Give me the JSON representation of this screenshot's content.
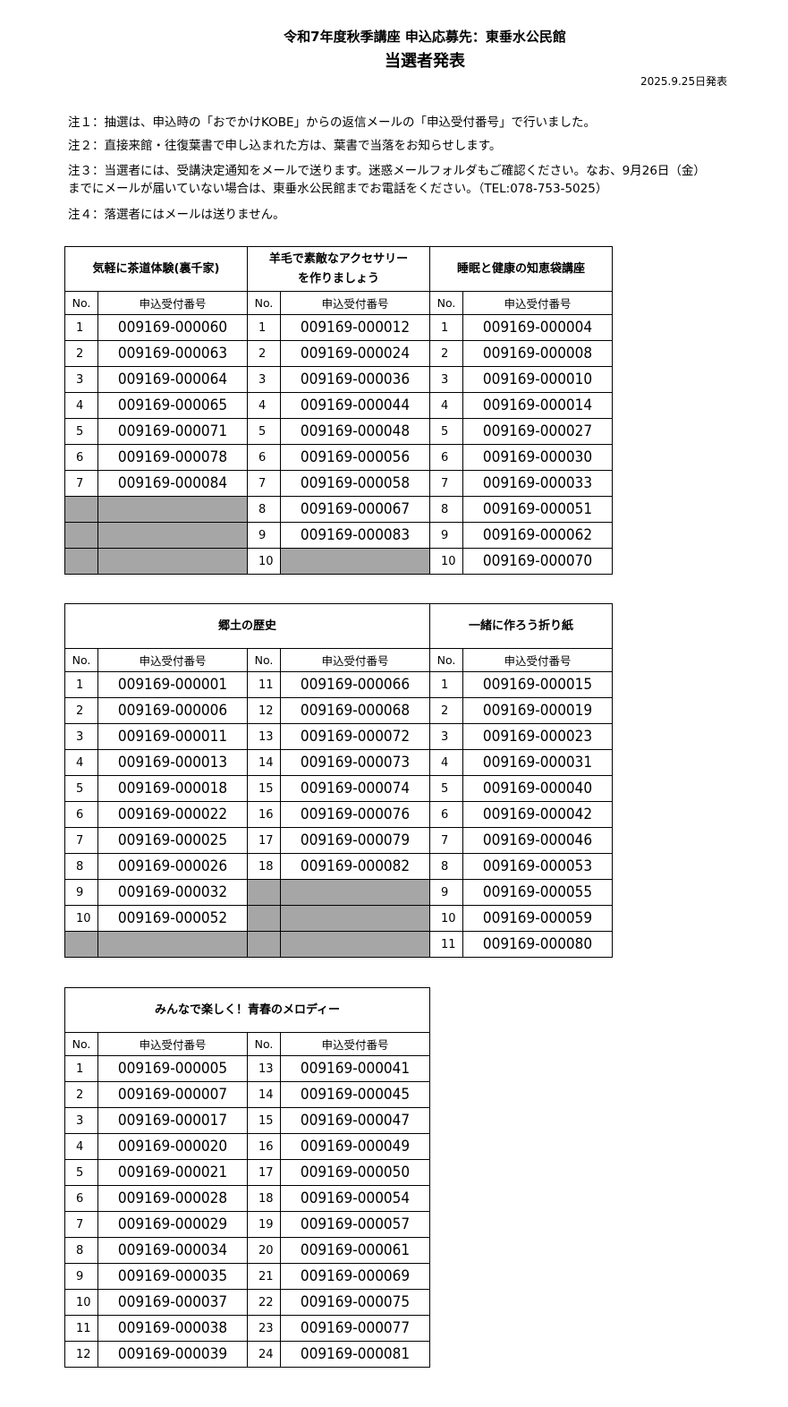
{
  "header": {
    "title": "令和7年度秋季講座 申込応募先：東垂水公民館",
    "subtitle": "当選者発表",
    "date": "2025.9.25日発表"
  },
  "notes": [
    "注１：抽選は、申込時の「おでかけKOBE」からの返信メールの「申込受付番号」で行いました。",
    "注２：直接来館・往復葉書で申し込まれた方は、葉書で当落をお知らせします。",
    "注３：当選者には、受講決定通知をメールで送ります。迷惑メールフォルダもご確認ください。なお、9月26日（金）",
    "までにメールが届いていない場合は、東垂水公民館までお電話をください。（TEL:078-753-5025）",
    "注４：落選者にはメールは送りません。"
  ],
  "labels": {
    "no": "No.",
    "code": "申込受付番号"
  },
  "tables": [
    {
      "rows": 10,
      "groups": [
        {
          "title": "気軽に茶道体験(裏千家)",
          "columns": [
            [
              [
                "1",
                "009169-000060"
              ],
              [
                "2",
                "009169-000063"
              ],
              [
                "3",
                "009169-000064"
              ],
              [
                "4",
                "009169-000065"
              ],
              [
                "5",
                "009169-000071"
              ],
              [
                "6",
                "009169-000078"
              ],
              [
                "7",
                "009169-000084"
              ],
              null,
              null,
              null
            ]
          ]
        },
        {
          "title": "羊毛で素敵なアクセサリー\nを作りましょう",
          "columns": [
            [
              [
                "1",
                "009169-000012"
              ],
              [
                "2",
                "009169-000024"
              ],
              [
                "3",
                "009169-000036"
              ],
              [
                "4",
                "009169-000044"
              ],
              [
                "5",
                "009169-000048"
              ],
              [
                "6",
                "009169-000056"
              ],
              [
                "7",
                "009169-000058"
              ],
              [
                "8",
                "009169-000067"
              ],
              [
                "9",
                "009169-000083"
              ],
              [
                "10",
                null
              ]
            ]
          ]
        },
        {
          "title": "睡眠と健康の知恵袋講座",
          "columns": [
            [
              [
                "1",
                "009169-000004"
              ],
              [
                "2",
                "009169-000008"
              ],
              [
                "3",
                "009169-000010"
              ],
              [
                "4",
                "009169-000014"
              ],
              [
                "5",
                "009169-000027"
              ],
              [
                "6",
                "009169-000030"
              ],
              [
                "7",
                "009169-000033"
              ],
              [
                "8",
                "009169-000051"
              ],
              [
                "9",
                "009169-000062"
              ],
              [
                "10",
                "009169-000070"
              ]
            ]
          ]
        }
      ]
    },
    {
      "rows": 11,
      "groups": [
        {
          "title": "郷土の歴史",
          "columns": [
            [
              [
                "1",
                "009169-000001"
              ],
              [
                "2",
                "009169-000006"
              ],
              [
                "3",
                "009169-000011"
              ],
              [
                "4",
                "009169-000013"
              ],
              [
                "5",
                "009169-000018"
              ],
              [
                "6",
                "009169-000022"
              ],
              [
                "7",
                "009169-000025"
              ],
              [
                "8",
                "009169-000026"
              ],
              [
                "9",
                "009169-000032"
              ],
              [
                "10",
                "009169-000052"
              ],
              null
            ],
            [
              [
                "11",
                "009169-000066"
              ],
              [
                "12",
                "009169-000068"
              ],
              [
                "13",
                "009169-000072"
              ],
              [
                "14",
                "009169-000073"
              ],
              [
                "15",
                "009169-000074"
              ],
              [
                "16",
                "009169-000076"
              ],
              [
                "17",
                "009169-000079"
              ],
              [
                "18",
                "009169-000082"
              ],
              null,
              null,
              null
            ]
          ]
        },
        {
          "title": "一緒に作ろう折り紙",
          "columns": [
            [
              [
                "1",
                "009169-000015"
              ],
              [
                "2",
                "009169-000019"
              ],
              [
                "3",
                "009169-000023"
              ],
              [
                "4",
                "009169-000031"
              ],
              [
                "5",
                "009169-000040"
              ],
              [
                "6",
                "009169-000042"
              ],
              [
                "7",
                "009169-000046"
              ],
              [
                "8",
                "009169-000053"
              ],
              [
                "9",
                "009169-000055"
              ],
              [
                "10",
                "009169-000059"
              ],
              [
                "11",
                "009169-000080"
              ]
            ]
          ]
        }
      ]
    },
    {
      "rows": 12,
      "groups": [
        {
          "title": "みんなで楽しく！青春のメロディー",
          "columns": [
            [
              [
                "1",
                "009169-000005"
              ],
              [
                "2",
                "009169-000007"
              ],
              [
                "3",
                "009169-000017"
              ],
              [
                "4",
                "009169-000020"
              ],
              [
                "5",
                "009169-000021"
              ],
              [
                "6",
                "009169-000028"
              ],
              [
                "7",
                "009169-000029"
              ],
              [
                "8",
                "009169-000034"
              ],
              [
                "9",
                "009169-000035"
              ],
              [
                "10",
                "009169-000037"
              ],
              [
                "11",
                "009169-000038"
              ],
              [
                "12",
                "009169-000039"
              ]
            ],
            [
              [
                "13",
                "009169-000041"
              ],
              [
                "14",
                "009169-000045"
              ],
              [
                "15",
                "009169-000047"
              ],
              [
                "16",
                "009169-000049"
              ],
              [
                "17",
                "009169-000050"
              ],
              [
                "18",
                "009169-000054"
              ],
              [
                "19",
                "009169-000057"
              ],
              [
                "20",
                "009169-000061"
              ],
              [
                "21",
                "009169-000069"
              ],
              [
                "22",
                "009169-000075"
              ],
              [
                "23",
                "009169-000077"
              ],
              [
                "24",
                "009169-000081"
              ]
            ]
          ]
        }
      ]
    }
  ]
}
